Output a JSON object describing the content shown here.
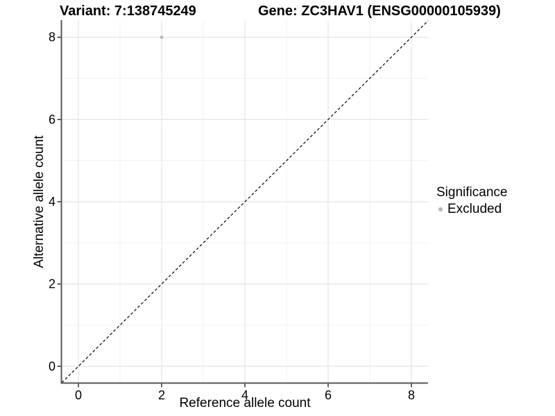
{
  "figure": {
    "title_left": "Variant: 7:138745249",
    "title_right": "Gene: ZC3HAV1 (ENSG00000105939)"
  },
  "chart_data": {
    "type": "scatter",
    "title_left": "Variant: 7:138745249",
    "title_right": "Gene: ZC3HAV1 (ENSG00000105939)",
    "xlabel": "Reference allele count",
    "ylabel": "Alternative allele count",
    "xlim": [
      -0.4,
      8.4
    ],
    "ylim": [
      -0.4,
      8.4
    ],
    "x_ticks": [
      0,
      2,
      4,
      6,
      8
    ],
    "y_ticks": [
      0,
      2,
      4,
      6,
      8
    ],
    "grid": "major+minor",
    "series": [
      {
        "name": "Excluded",
        "points": [
          {
            "x": 2,
            "y": 8
          }
        ]
      }
    ],
    "reference_line": {
      "style": "dashed",
      "slope": 1,
      "intercept": 0,
      "color": "#000000"
    },
    "legend": {
      "title": "Significance",
      "position": "right",
      "entries": [
        {
          "label": "Excluded",
          "color": "#b5b5b5",
          "marker": "circle"
        }
      ]
    },
    "colors": {
      "point": "#b5b5b5",
      "grid_major": "#e4e4e4",
      "grid_minor": "#f2f2f2",
      "axis_line": "#565656",
      "tick_mark": "#333333",
      "text": "#000000",
      "background": "#ffffff"
    }
  }
}
